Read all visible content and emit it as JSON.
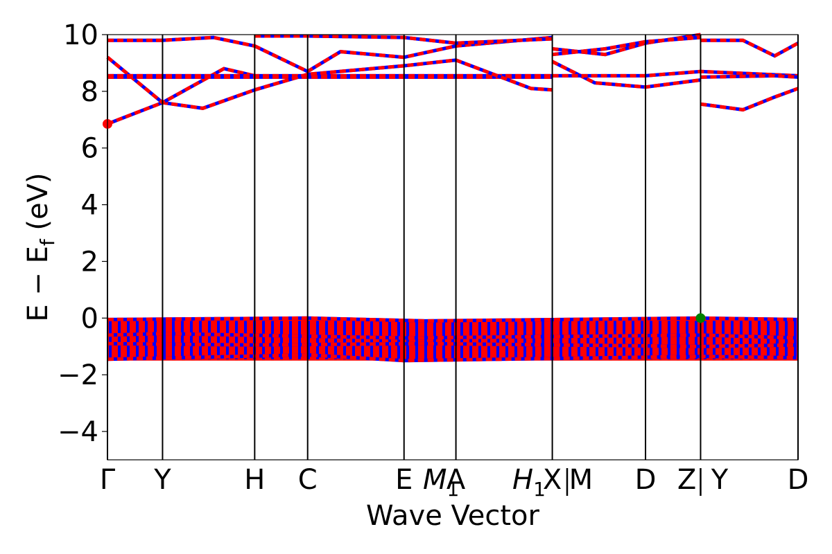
{
  "chart_data": {
    "type": "line",
    "xlabel": "Wave Vector",
    "ylabel_parts": [
      "E",
      "−",
      "E",
      "f",
      "(eV)"
    ],
    "ylim": [
      -5,
      10
    ],
    "yticks": [
      -4,
      -2,
      0,
      2,
      4,
      6,
      8,
      10
    ],
    "ytick_labels": [
      "−4",
      "−2",
      "0",
      "2",
      "4",
      "6",
      "8",
      "10"
    ],
    "grid": false,
    "kpath": [
      {
        "label": "Γ",
        "k": 0.0
      },
      {
        "label": "Y",
        "k": 0.52
      },
      {
        "label": "H",
        "k": 1.39
      },
      {
        "label": "C",
        "k": 1.89
      },
      {
        "label": "E",
        "k": 2.8
      },
      {
        "label": "M",
        "sub": "1",
        "italic": true,
        "k": 3.15
      },
      {
        "label": "A",
        "k": 3.29
      },
      {
        "label": "H",
        "sub": "1",
        "italic": true,
        "k": 3.98
      },
      {
        "label": "X",
        "k": 4.2
      },
      {
        "label": "M",
        "k": 4.47
      },
      {
        "label": "D",
        "k": 5.08
      },
      {
        "label": "Z",
        "k": 5.47
      },
      {
        "label": "Y",
        "k": 5.78
      },
      {
        "label": "D",
        "k": 6.52
      }
    ],
    "kpath_raw_labels": [
      "Γ",
      "Y",
      "H",
      "C",
      "E",
      "M1",
      "M1",
      "A",
      "H1",
      "X | M",
      "D",
      "Z | Y",
      "D"
    ],
    "vlines_k": [
      0.0,
      0.52,
      1.39,
      1.89,
      2.8,
      3.29,
      4.2,
      5.08,
      5.6,
      6.52
    ],
    "spin_colors": {
      "spin_down": "#0000ff",
      "spin_up": "#ff0000"
    },
    "markers": [
      {
        "name": "CBM",
        "k": 0.0,
        "y": 6.85,
        "color": "#ff0000"
      },
      {
        "name": "VBM",
        "k": 5.6,
        "y": 0.0,
        "color": "#008000"
      }
    ],
    "valence_band_window": [
      -1.5,
      0.0
    ],
    "series": [
      {
        "k": [
          0,
          0.52,
          0.9,
          1.39
        ],
        "y": [
          6.85,
          7.6,
          7.4,
          8.05
        ]
      },
      {
        "k": [
          0,
          0.52,
          1.1,
          1.39
        ],
        "y": [
          9.2,
          7.6,
          8.8,
          8.55
        ]
      },
      {
        "k": [
          0,
          0.52,
          1.0,
          1.39
        ],
        "y": [
          9.8,
          9.8,
          9.9,
          9.6
        ]
      },
      {
        "k": [
          0,
          1.39,
          1.89,
          2.8,
          3.29,
          4.2
        ],
        "y": [
          8.55,
          8.55,
          8.55,
          8.55,
          8.55,
          8.55
        ]
      },
      {
        "k": [
          0,
          1.39,
          1.89,
          2.8,
          3.29,
          4.2
        ],
        "y": [
          8.5,
          8.5,
          8.5,
          8.5,
          8.5,
          8.5
        ]
      },
      {
        "k": [
          1.39,
          1.89,
          2.8,
          3.29,
          4.0,
          4.2
        ],
        "y": [
          8.05,
          8.6,
          8.9,
          9.1,
          8.1,
          8.05
        ]
      },
      {
        "k": [
          1.39,
          1.89,
          2.2,
          2.8,
          3.29,
          4.2
        ],
        "y": [
          9.6,
          8.7,
          9.4,
          9.2,
          9.6,
          9.9
        ]
      },
      {
        "k": [
          1.39,
          1.89,
          2.8,
          3.29,
          4.2
        ],
        "y": [
          9.95,
          9.95,
          9.9,
          9.7,
          9.85
        ]
      },
      {
        "k": [
          4.2,
          4.6,
          5.08,
          5.6
        ],
        "y": [
          9.05,
          8.3,
          8.15,
          8.4
        ]
      },
      {
        "k": [
          4.2,
          4.7,
          5.08,
          5.6
        ],
        "y": [
          9.5,
          9.3,
          9.7,
          10.0
        ]
      },
      {
        "k": [
          4.2,
          4.7,
          5.08,
          5.6
        ],
        "y": [
          9.3,
          9.5,
          9.75,
          9.9
        ]
      },
      {
        "k": [
          4.2,
          5.08,
          5.6,
          6.52
        ],
        "y": [
          8.55,
          8.55,
          8.7,
          8.55
        ]
      },
      {
        "k": [
          5.6,
          6.0,
          6.3,
          6.52
        ],
        "y": [
          7.55,
          7.35,
          7.8,
          8.1
        ]
      },
      {
        "k": [
          5.6,
          6.0,
          6.3,
          6.52
        ],
        "y": [
          9.8,
          9.8,
          9.25,
          9.7
        ]
      },
      {
        "k": [
          5.6,
          6.3,
          6.52
        ],
        "y": [
          8.5,
          8.55,
          8.5
        ]
      },
      {
        "k": [
          0,
          1.89,
          3.0,
          5.6,
          6.52
        ],
        "y": [
          -0.05,
          0.0,
          -0.1,
          0.0,
          -0.05
        ]
      },
      {
        "k": [
          0,
          0.52,
          2.8,
          5.6,
          6.52
        ],
        "y": [
          -0.6,
          -0.55,
          -0.7,
          -0.6,
          -0.7
        ]
      },
      {
        "k": [
          0,
          1.39,
          3.0,
          5.6,
          6.52
        ],
        "y": [
          -0.9,
          -0.95,
          -0.9,
          -1.0,
          -0.95
        ]
      },
      {
        "k": [
          0,
          1.89,
          2.8,
          5.6,
          6.52
        ],
        "y": [
          -1.45,
          -1.3,
          -1.5,
          -1.35,
          -1.4
        ]
      }
    ]
  }
}
